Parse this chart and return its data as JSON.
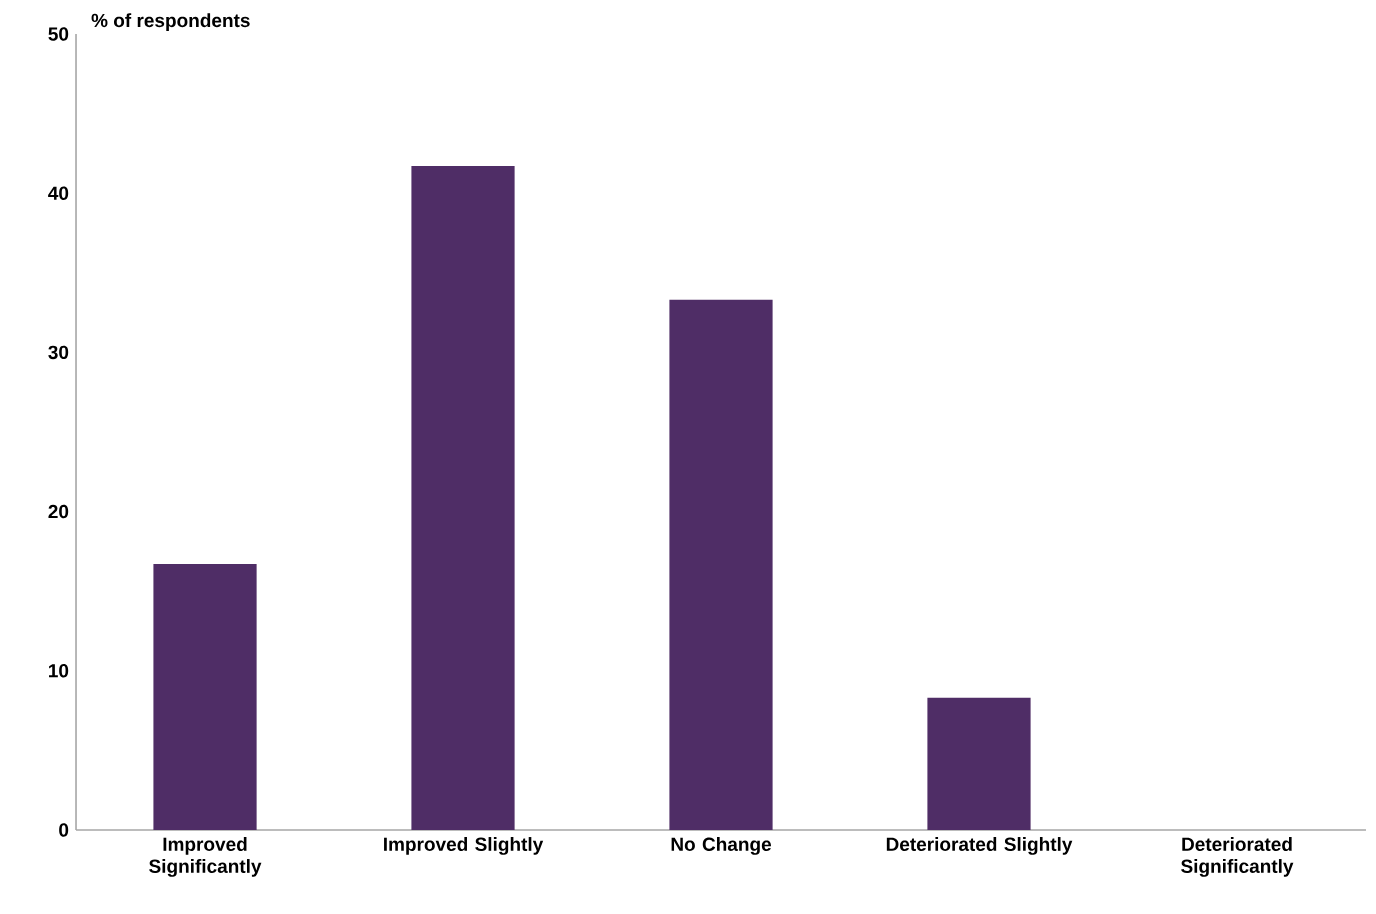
{
  "chart_data": {
    "type": "bar",
    "ylabel": "% of respondents",
    "categories": [
      "Improved Significantly",
      "Improved Slightly",
      "No Change",
      "Deteriorated Slightly",
      "Deteriorated Significantly"
    ],
    "values": [
      16.7,
      41.7,
      33.3,
      8.3,
      0
    ],
    "color": "#4f2d66",
    "ylim": [
      0,
      50
    ],
    "yticks": [
      0,
      10,
      20,
      30,
      40,
      50
    ]
  }
}
